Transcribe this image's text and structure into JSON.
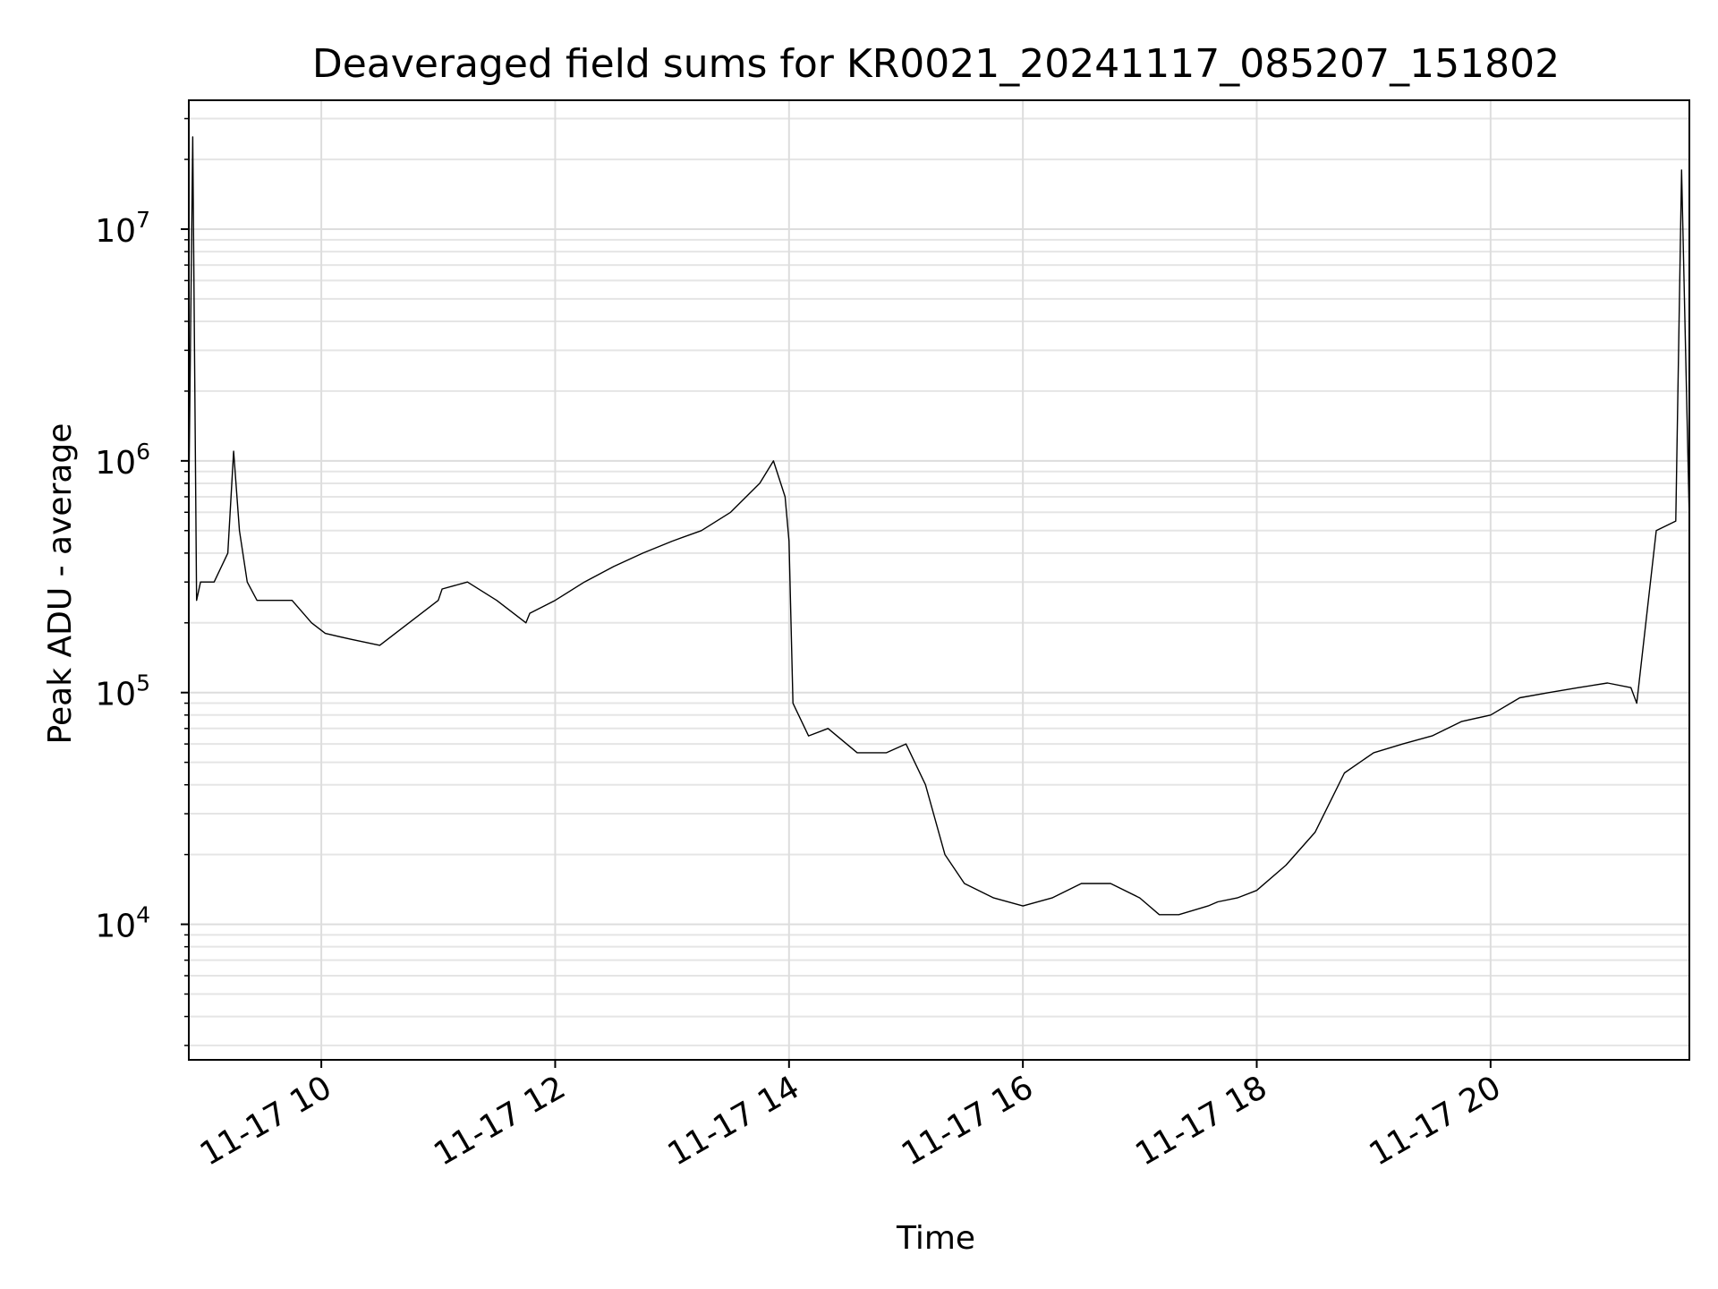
{
  "chart_data": {
    "type": "line",
    "title": "Deaveraged field sums for KR0021_20241117_085207_151802",
    "xlabel": "Time",
    "ylabel": "Peak ADU - average",
    "y_scale": "log",
    "grid": true,
    "x_ticks": [
      "11-17 10",
      "11-17 12",
      "11-17 14",
      "11-17 16",
      "11-17 18",
      "11-17 20"
    ],
    "y_ticks": [
      "10^4",
      "10^5",
      "10^6",
      "10^7"
    ],
    "y_tick_base": "10",
    "y_tick_exponents": [
      "4",
      "5",
      "6",
      "7"
    ],
    "xlim": [
      "2024-11-17 08:52",
      "2024-11-17 21:42"
    ],
    "ylim": [
      2600,
      36000000
    ],
    "line_color": "#000000",
    "series": [
      {
        "x": [
          "2024-11-17 08:52",
          "2024-11-17 08:54",
          "2024-11-17 08:56",
          "2024-11-17 08:58",
          "2024-11-17 09:05",
          "2024-11-17 09:12",
          "2024-11-17 09:15",
          "2024-11-17 09:18",
          "2024-11-17 09:22",
          "2024-11-17 09:27",
          "2024-11-17 09:35",
          "2024-11-17 09:45",
          "2024-11-17 09:55",
          "2024-11-17 10:02",
          "2024-11-17 10:15",
          "2024-11-17 10:30",
          "2024-11-17 10:45",
          "2024-11-17 11:00",
          "2024-11-17 11:02",
          "2024-11-17 11:15",
          "2024-11-17 11:30",
          "2024-11-17 11:45",
          "2024-11-17 11:47",
          "2024-11-17 12:00",
          "2024-11-17 12:15",
          "2024-11-17 12:30",
          "2024-11-17 12:45",
          "2024-11-17 13:00",
          "2024-11-17 13:15",
          "2024-11-17 13:30",
          "2024-11-17 13:45",
          "2024-11-17 13:52",
          "2024-11-17 13:58",
          "2024-11-17 14:00",
          "2024-11-17 14:02",
          "2024-11-17 14:10",
          "2024-11-17 14:20",
          "2024-11-17 14:35",
          "2024-11-17 14:50",
          "2024-11-17 15:00",
          "2024-11-17 15:10",
          "2024-11-17 15:20",
          "2024-11-17 15:30",
          "2024-11-17 15:45",
          "2024-11-17 16:00",
          "2024-11-17 16:15",
          "2024-11-17 16:30",
          "2024-11-17 16:45",
          "2024-11-17 17:00",
          "2024-11-17 17:10",
          "2024-11-17 17:20",
          "2024-11-17 17:35",
          "2024-11-17 17:40",
          "2024-11-17 17:50",
          "2024-11-17 18:00",
          "2024-11-17 18:15",
          "2024-11-17 18:30",
          "2024-11-17 18:45",
          "2024-11-17 19:00",
          "2024-11-17 19:15",
          "2024-11-17 19:30",
          "2024-11-17 19:45",
          "2024-11-17 20:00",
          "2024-11-17 20:15",
          "2024-11-17 20:30",
          "2024-11-17 20:45",
          "2024-11-17 21:00",
          "2024-11-17 21:12",
          "2024-11-17 21:15",
          "2024-11-17 21:25",
          "2024-11-17 21:35",
          "2024-11-17 21:38",
          "2024-11-17 21:42"
        ],
        "y": [
          700000,
          25000000,
          250000,
          300000,
          300000,
          400000,
          1100000,
          500000,
          300000,
          250000,
          250000,
          250000,
          200000,
          180000,
          170000,
          160000,
          200000,
          250000,
          280000,
          300000,
          250000,
          200000,
          220000,
          250000,
          300000,
          350000,
          400000,
          450000,
          500000,
          600000,
          800000,
          1000000,
          700000,
          450000,
          90000,
          65000,
          70000,
          55000,
          55000,
          60000,
          40000,
          20000,
          15000,
          13000,
          12000,
          13000,
          15000,
          15000,
          13000,
          11000,
          11000,
          12000,
          12500,
          13000,
          14000,
          18000,
          25000,
          45000,
          55000,
          60000,
          65000,
          75000,
          80000,
          95000,
          100000,
          105000,
          110000,
          105000,
          90000,
          500000,
          550000,
          18000000,
          550000
        ]
      }
    ]
  }
}
